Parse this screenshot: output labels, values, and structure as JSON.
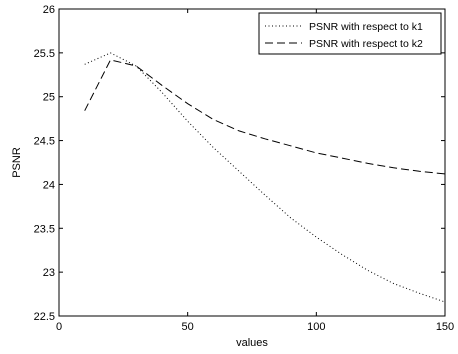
{
  "chart_data": {
    "type": "line",
    "title": "",
    "xlabel": "values",
    "ylabel": "PSNR",
    "xlim": [
      0,
      150
    ],
    "ylim": [
      22.5,
      26
    ],
    "xticks": [
      "0",
      "50",
      "100",
      "150"
    ],
    "yticks": [
      "22.5",
      "23",
      "23.5",
      "24",
      "24.5",
      "25",
      "25.5",
      "26"
    ],
    "grid": false,
    "legend_position": "top-right",
    "series": [
      {
        "name": "PSNR with respect to k1",
        "style": "dotted",
        "color": "#000000",
        "x": [
          10,
          20,
          30,
          40,
          50,
          60,
          70,
          80,
          90,
          100,
          110,
          120,
          130,
          140,
          150
        ],
        "y": [
          25.37,
          25.5,
          25.35,
          25.05,
          24.72,
          24.42,
          24.15,
          23.88,
          23.62,
          23.4,
          23.2,
          23.02,
          22.87,
          22.76,
          22.66
        ]
      },
      {
        "name": "PSNR with respect to k2",
        "style": "dashed",
        "color": "#000000",
        "x": [
          10,
          20,
          30,
          40,
          50,
          60,
          70,
          80,
          90,
          100,
          110,
          120,
          130,
          140,
          150
        ],
        "y": [
          24.84,
          25.42,
          25.35,
          25.13,
          24.92,
          24.74,
          24.61,
          24.52,
          24.44,
          24.36,
          24.3,
          24.24,
          24.19,
          24.15,
          24.12
        ]
      }
    ]
  }
}
